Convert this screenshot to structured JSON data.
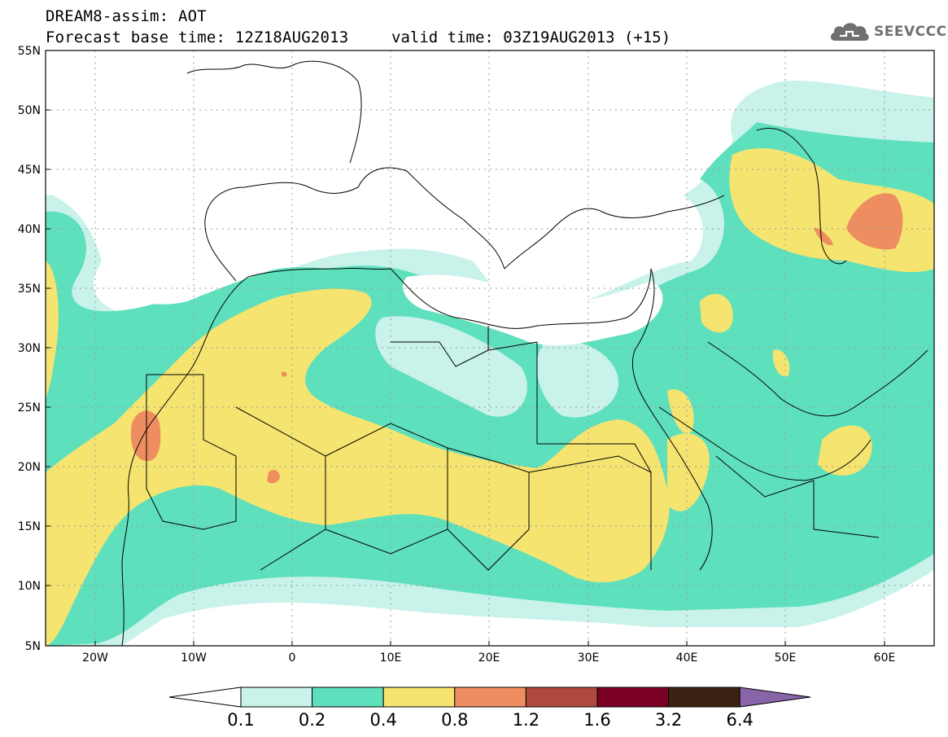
{
  "header": {
    "title": "DREAM8-assim: AOT",
    "base_time": "Forecast base time: 12Z18AUG2013",
    "valid_time": "valid time: 03Z19AUG2013 (+15)"
  },
  "logo": {
    "text": "SEEVCCC",
    "icon": "cloud-icon"
  },
  "map": {
    "variable": "AOT",
    "lat_labels": [
      "55N",
      "50N",
      "45N",
      "40N",
      "35N",
      "30N",
      "25N",
      "20N",
      "15N",
      "10N",
      "5N"
    ],
    "lon_labels": [
      "20W",
      "10W",
      "0",
      "10E",
      "20E",
      "30E",
      "40E",
      "50E",
      "60E"
    ],
    "lat_range": [
      5,
      55
    ],
    "lon_range": [
      -25,
      65
    ],
    "grid": "dotted"
  },
  "colorbar": {
    "levels": [
      "0.1",
      "0.2",
      "0.4",
      "0.8",
      "1.2",
      "1.6",
      "3.2",
      "6.4"
    ],
    "colors": [
      "#c8f2ea",
      "#5fe0bd",
      "#f5e46f",
      "#ee8e60",
      "#b0493d",
      "#7a0025",
      "#3a2212",
      "#8a64a8"
    ],
    "below_color": "#ffffff"
  },
  "chart_data": {
    "type": "heatmap",
    "title": "DREAM8-assim: AOT",
    "xlabel": "",
    "ylabel": "",
    "xlim": [
      -25,
      65
    ],
    "ylim": [
      5,
      55
    ],
    "legend": "bottom"
  }
}
